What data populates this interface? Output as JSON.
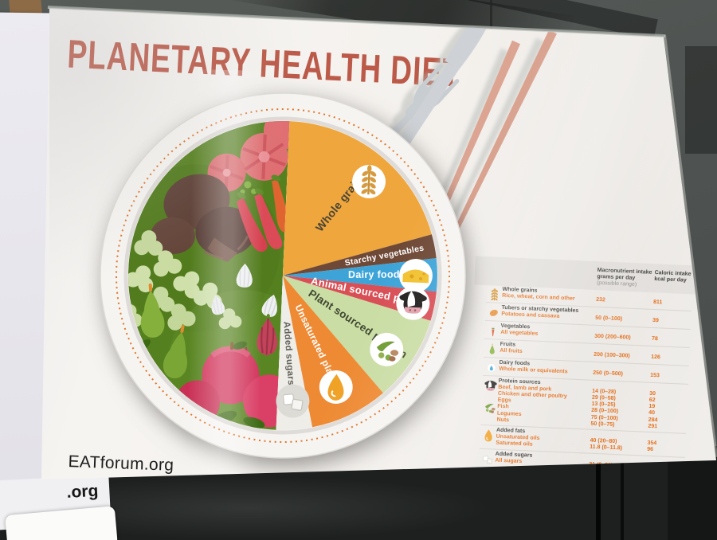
{
  "scene": {
    "bottom_sheet_fragment": ".org"
  },
  "poster": {
    "title": "PLANETARY HEALTH DIET",
    "website": "EATforum.org"
  },
  "plate": {
    "segments": [
      {
        "id": "whole-grains",
        "label": "Whole grains",
        "color": "#efa63c",
        "start": 0,
        "end": 72,
        "label_color": "#4a4537",
        "icon": "wheat",
        "icon_bg": "#ffffff"
      },
      {
        "id": "starchy-vegetables",
        "label": "Starchy vegetables",
        "color": "#6f4937",
        "start": 72,
        "end": 81,
        "label_color": "#ffffff",
        "icon": null,
        "icon_bg": null
      },
      {
        "id": "dairy-foods",
        "label": "Dairy foods",
        "color": "#3ea4d8",
        "start": 81,
        "end": 93.5,
        "label_color": "#ffffff",
        "icon": "cheese",
        "icon_bg": "#ffffff"
      },
      {
        "id": "animal-sourced-protein",
        "label": "Animal sourced protein",
        "color": "#d84f56",
        "start": 93.5,
        "end": 104.5,
        "label_color": "#ffffff",
        "icon": "cow",
        "icon_bg": "#ffffff"
      },
      {
        "id": "plant-sourced-protein",
        "label": "Plant sourced protein",
        "color": "#cadda4",
        "start": 104.5,
        "end": 137,
        "label_color": "#3f4630",
        "icon": "legumes",
        "icon_bg": "#ffffff"
      },
      {
        "id": "unsaturated-plant-oils",
        "label": "Unsaturated plant oils",
        "color": "#ee8a33",
        "start": 137,
        "end": 166.5,
        "label_color": "#ffffff",
        "icon": "oil",
        "icon_bg": "#ffffff"
      },
      {
        "id": "added-sugars",
        "label": "Added sugars",
        "color": "#efede7",
        "start": 166.5,
        "end": 180,
        "label_color": "#5f5f58",
        "icon": "sugar",
        "icon_bg": "#dcdbd5"
      }
    ],
    "left_half_content": "vegetables and fruits illustration",
    "left_half_color": "#55801f",
    "dashed_ring_color": "#e0762a"
  },
  "table": {
    "header": {
      "macro_line1": "Macronutrient intake",
      "macro_line2": "grams per day",
      "macro_note": "(possible range)",
      "caloric_line1": "Caloric intake",
      "caloric_line2": "kcal per day"
    },
    "rows": [
      {
        "icons": [
          "wheat"
        ],
        "title": "Whole grains",
        "subs": [
          {
            "label": "Rice, wheat, corn and other",
            "grams": "232",
            "kcal": "811"
          }
        ]
      },
      {
        "icons": [
          "potato"
        ],
        "title": "Tubers or starchy vegetables",
        "subs": [
          {
            "label": "Potatoes and cassava",
            "grams": "50 (0–100)",
            "kcal": "39"
          }
        ]
      },
      {
        "icons": [
          "carrot"
        ],
        "title": "Vegetables",
        "subs": [
          {
            "label": "All vegetables",
            "grams": "300 (200–600)",
            "kcal": "78"
          }
        ]
      },
      {
        "icons": [
          "pear"
        ],
        "title": "Fruits",
        "subs": [
          {
            "label": "All fruits",
            "grams": "200 (100–300)",
            "kcal": "126"
          }
        ]
      },
      {
        "icons": [
          "milk"
        ],
        "title": "Dairy foods",
        "subs": [
          {
            "label": "Whole milk or equivalents",
            "grams": "250 (0–500)",
            "kcal": "153"
          }
        ]
      },
      {
        "icons": [
          "cow",
          "legumes"
        ],
        "title": "Protein sources",
        "subs": [
          {
            "label": "Beef, lamb and pork",
            "grams": "14 (0–28)",
            "kcal": "30"
          },
          {
            "label": "Chicken and other poultry",
            "grams": "29 (0–58)",
            "kcal": "62"
          },
          {
            "label": "Eggs",
            "grams": "13 (0–25)",
            "kcal": "19"
          },
          {
            "label": "Fish",
            "grams": "28 (0–100)",
            "kcal": "40"
          },
          {
            "label": "Legumes",
            "grams": "75 (0–100)",
            "kcal": "284"
          },
          {
            "label": "Nuts",
            "grams": "50 (0–75)",
            "kcal": "291"
          }
        ]
      },
      {
        "icons": [
          "oil"
        ],
        "title": "Added fats",
        "subs": [
          {
            "label": "Unsaturated oils",
            "grams": "40 (20–80)",
            "kcal": "354"
          },
          {
            "label": "Saturated oils",
            "grams": "11.8 (0–11.8)",
            "kcal": "96"
          }
        ]
      },
      {
        "icons": [
          "sugar"
        ],
        "title": "Added sugars",
        "subs": [
          {
            "label": "All sugars",
            "grams": "31 (0–31)",
            "kcal": "120"
          }
        ]
      }
    ]
  },
  "colors": {
    "title_red": "#bc5a49",
    "accent_orange": "#e4701e",
    "chopsticks": "#dba28f",
    "cutlery_gray": "#c8cdd1"
  }
}
